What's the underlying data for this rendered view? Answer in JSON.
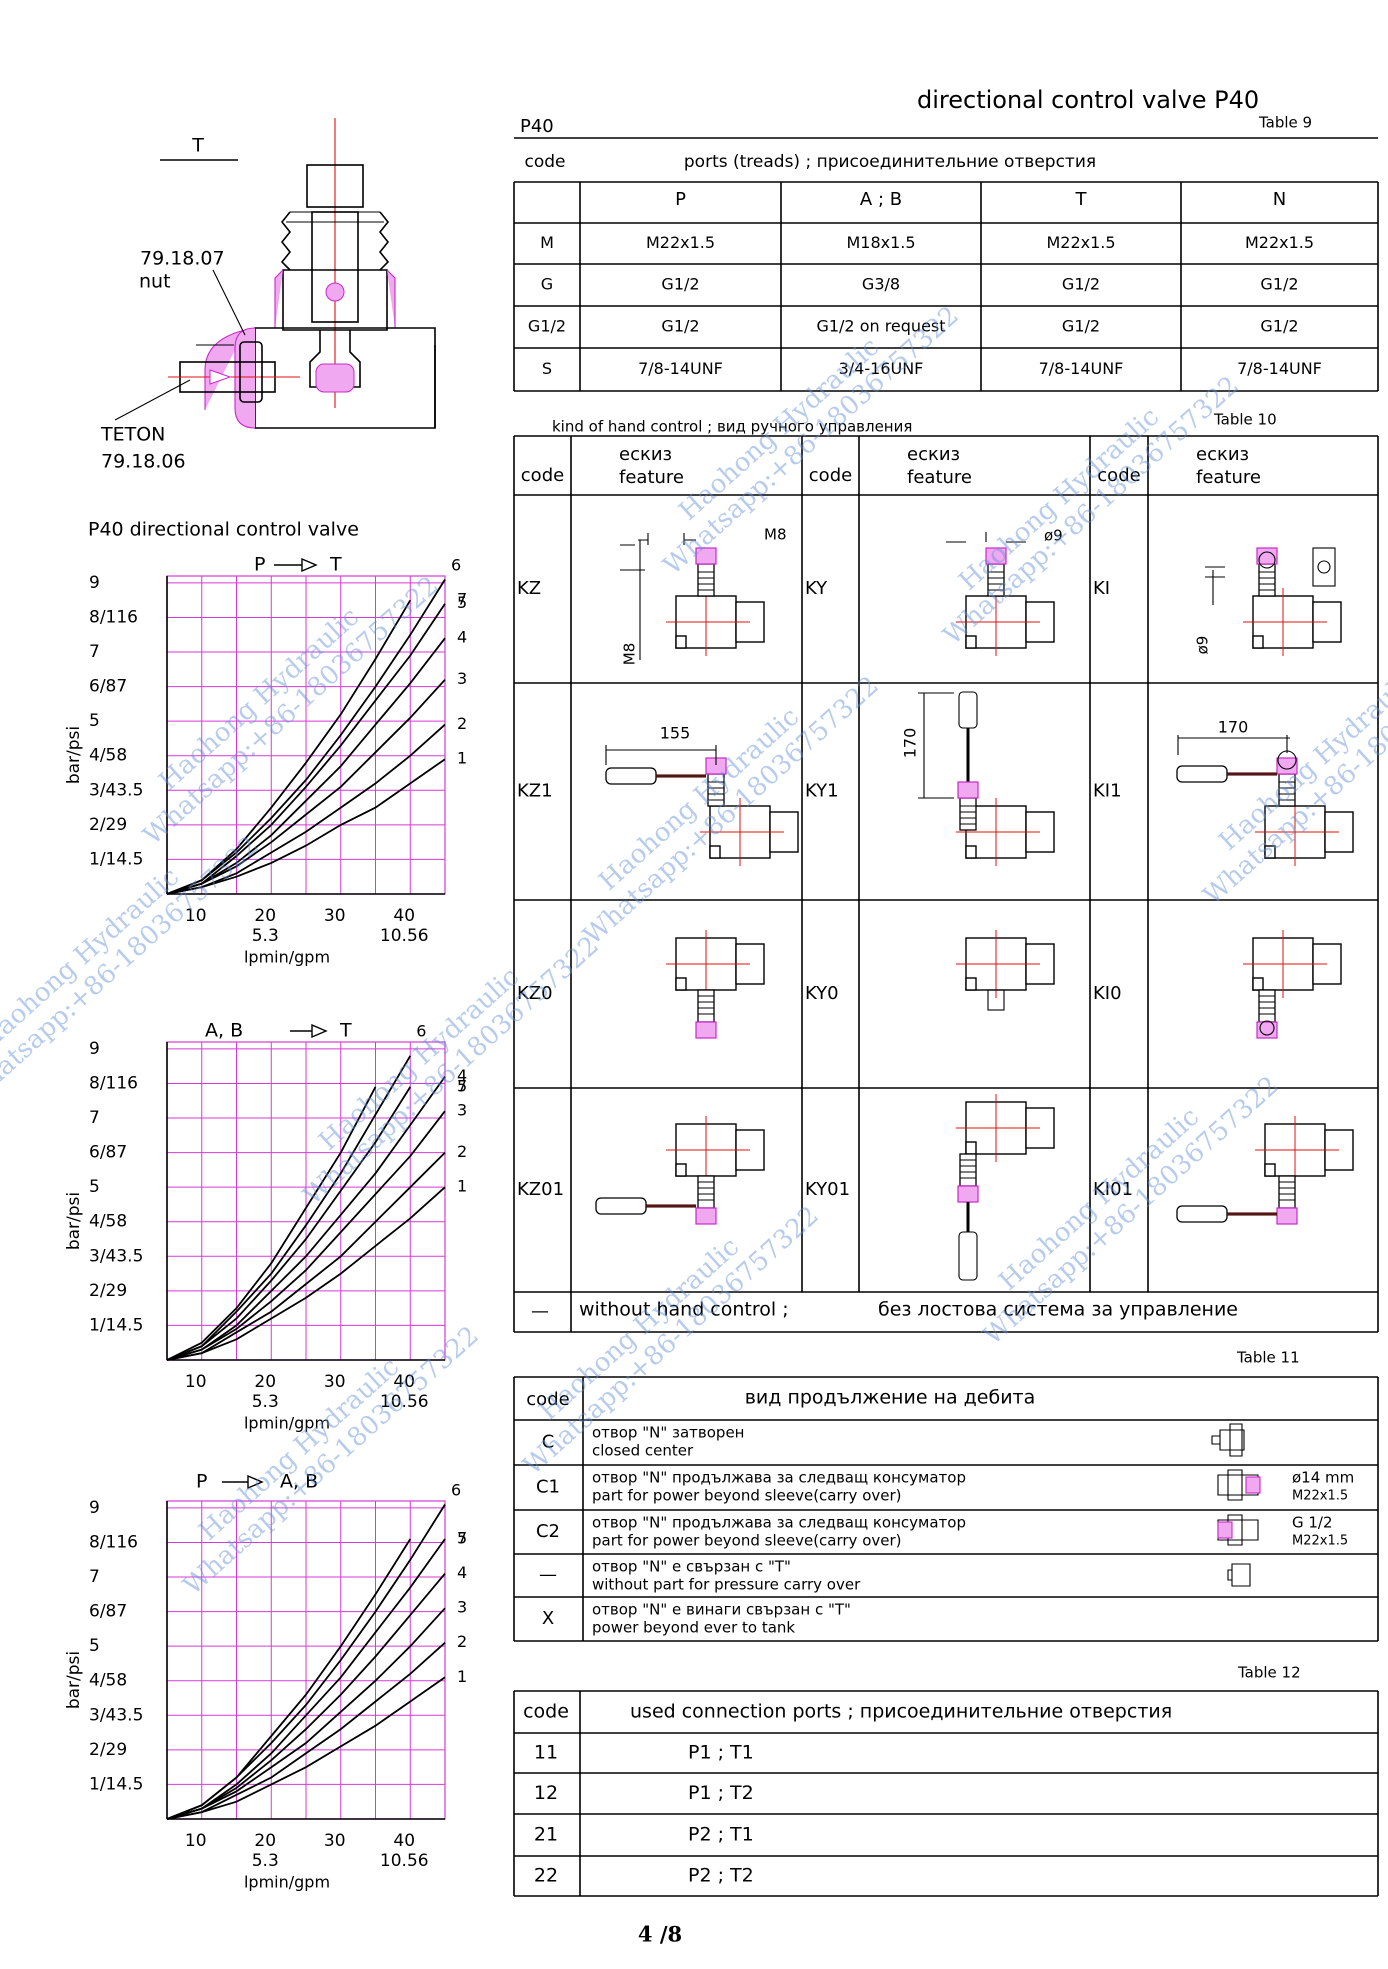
{
  "header": {
    "model": "P40",
    "title": "directional control valve P40"
  },
  "drawing": {
    "label": "T",
    "nut_code": "79.18.07",
    "nut": "nut",
    "teton": "TETON",
    "teton_code": "79.18.06"
  },
  "charts_title": "P40 directional control valve",
  "chart_data": [
    {
      "type": "line",
      "from": "P",
      "to": "T",
      "xlabel": "lpmin/gpm",
      "ylabel": "bar/psi",
      "x": [
        5,
        10,
        15,
        20,
        25,
        30,
        35,
        40,
        45
      ],
      "xlim": [
        5,
        45
      ],
      "ylim": [
        0,
        9.2
      ],
      "xticks": [
        10,
        20,
        30,
        40
      ],
      "xminor": [
        15,
        25,
        35
      ],
      "x2ticks": [
        {
          "value": 20,
          "label": "5.3"
        },
        {
          "value": 40,
          "label": "10.56"
        }
      ],
      "yticks": [
        {
          "value": 1,
          "label": "1/14.5"
        },
        {
          "value": 2,
          "label": "2/29"
        },
        {
          "value": 3,
          "label": "3/43.5"
        },
        {
          "value": 4,
          "label": "4/58"
        },
        5,
        {
          "value": 6,
          "label": "6/87"
        },
        7,
        {
          "value": 8,
          "label": "8/116"
        },
        9
      ],
      "grid": true,
      "grid_color": "#d63ad6",
      "series": [
        {
          "name": "1",
          "color": "#000000",
          "values": [
            0,
            0.2,
            0.5,
            0.9,
            1.4,
            2.0,
            2.5,
            3.2,
            3.9
          ]
        },
        {
          "name": "2",
          "color": "#000000",
          "values": [
            0,
            0.2,
            0.6,
            1.2,
            1.8,
            2.5,
            3.2,
            4.0,
            4.9
          ]
        },
        {
          "name": "3",
          "color": "#000000",
          "values": [
            0,
            0.3,
            0.8,
            1.5,
            2.3,
            3.1,
            4.1,
            5.1,
            6.2
          ]
        },
        {
          "name": "4",
          "color": "#000000",
          "values": [
            0,
            0.3,
            0.9,
            1.7,
            2.7,
            3.7,
            4.9,
            6.1,
            7.4
          ]
        },
        {
          "name": "5",
          "color": "#000000",
          "values": [
            0,
            0.3,
            1.1,
            2.0,
            3.1,
            4.3,
            5.6,
            6.9,
            8.4
          ]
        },
        {
          "name": "6",
          "color": "#000000",
          "values": [
            0,
            0.4,
            1.2,
            2.2,
            3.3,
            4.6,
            6.0,
            7.5,
            9.1
          ]
        },
        {
          "name": "7",
          "color": "#000000",
          "values": [
            0,
            0.4,
            1.3,
            2.5,
            3.8,
            5.2,
            6.8,
            8.5,
            null
          ]
        }
      ]
    },
    {
      "type": "line",
      "from": "A, B",
      "to": "T",
      "xlabel": "lpmin/gpm",
      "ylabel": "bar/psi",
      "x": [
        5,
        10,
        15,
        20,
        25,
        30,
        35,
        40,
        45
      ],
      "xlim": [
        5,
        45
      ],
      "ylim": [
        0,
        9.2
      ],
      "xticks": [
        10,
        20,
        30,
        40
      ],
      "xminor": [
        15,
        25,
        35
      ],
      "x2ticks": [
        {
          "value": 20,
          "label": "5.3"
        },
        {
          "value": 40,
          "label": "10.56"
        }
      ],
      "yticks": [
        {
          "value": 1,
          "label": "1/14.5"
        },
        {
          "value": 2,
          "label": "2/29"
        },
        {
          "value": 3,
          "label": "3/43.5"
        },
        {
          "value": 4,
          "label": "4/58"
        },
        5,
        {
          "value": 6,
          "label": "6/87"
        },
        7,
        {
          "value": 8,
          "label": "8/116"
        },
        9
      ],
      "grid": true,
      "grid_color": "#d63ad6",
      "series": [
        {
          "name": "1",
          "color": "#000000",
          "values": [
            0,
            0.2,
            0.6,
            1.2,
            1.8,
            2.5,
            3.3,
            4.1,
            5.0
          ]
        },
        {
          "name": "2",
          "color": "#000000",
          "values": [
            0,
            0.2,
            0.8,
            1.4,
            2.2,
            3.0,
            4.0,
            5.0,
            6.0
          ]
        },
        {
          "name": "3",
          "color": "#000000",
          "values": [
            0,
            0.3,
            0.9,
            1.7,
            2.6,
            3.7,
            4.8,
            5.9,
            7.2
          ]
        },
        {
          "name": "4",
          "color": "#000000",
          "values": [
            0,
            0.3,
            1.0,
            2.0,
            3.0,
            4.2,
            5.4,
            6.8,
            8.2
          ]
        },
        {
          "name": "5",
          "color": "#000000",
          "values": [
            0,
            0.4,
            1.2,
            2.3,
            3.5,
            4.9,
            6.3,
            7.9,
            null
          ]
        },
        {
          "name": "6",
          "color": "#000000",
          "values": [
            0,
            0.4,
            1.4,
            2.5,
            3.9,
            5.4,
            7.1,
            8.8,
            null
          ]
        },
        {
          "name": "7",
          "color": "#000000",
          "values": [
            0,
            0.5,
            1.5,
            2.8,
            4.4,
            6.0,
            7.9,
            null,
            null
          ]
        }
      ]
    },
    {
      "type": "line",
      "from": "P",
      "to": "A, B",
      "xlabel": "lpmin/gpm",
      "ylabel": "bar/psi",
      "x": [
        5,
        10,
        15,
        20,
        25,
        30,
        35,
        40,
        45
      ],
      "xlim": [
        5,
        45
      ],
      "ylim": [
        0,
        9.2
      ],
      "xticks": [
        10,
        20,
        30,
        40
      ],
      "xminor": [
        15,
        25,
        35
      ],
      "x2ticks": [
        {
          "value": 20,
          "label": "5.3"
        },
        {
          "value": 40,
          "label": "10.56"
        }
      ],
      "yticks": [
        {
          "value": 1,
          "label": "1/14.5"
        },
        {
          "value": 2,
          "label": "2/29"
        },
        {
          "value": 3,
          "label": "3/43.5"
        },
        {
          "value": 4,
          "label": "4/58"
        },
        5,
        {
          "value": 6,
          "label": "6/87"
        },
        7,
        {
          "value": 8,
          "label": "8/116"
        },
        9
      ],
      "grid": true,
      "grid_color": "#d63ad6",
      "series": [
        {
          "name": "1",
          "color": "#000000",
          "values": [
            0,
            0.2,
            0.5,
            1.0,
            1.5,
            2.1,
            2.7,
            3.4,
            4.1
          ]
        },
        {
          "name": "2",
          "color": "#000000",
          "values": [
            0,
            0.2,
            0.7,
            1.2,
            1.9,
            2.6,
            3.4,
            4.2,
            5.1
          ]
        },
        {
          "name": "3",
          "color": "#000000",
          "values": [
            0,
            0.3,
            0.8,
            1.5,
            2.2,
            3.1,
            4.0,
            5.0,
            6.1
          ]
        },
        {
          "name": "4",
          "color": "#000000",
          "values": [
            0,
            0.3,
            0.9,
            1.7,
            2.6,
            3.6,
            4.7,
            5.9,
            7.1
          ]
        },
        {
          "name": "5",
          "color": "#000000",
          "values": [
            0,
            0.3,
            1.0,
            1.9,
            3.0,
            4.1,
            5.4,
            6.7,
            8.1
          ]
        },
        {
          "name": "6",
          "color": "#000000",
          "values": [
            0,
            0.4,
            1.2,
            2.2,
            3.3,
            4.6,
            6.0,
            7.5,
            9.1
          ]
        },
        {
          "name": "7",
          "color": "#000000",
          "values": [
            0,
            0.4,
            1.2,
            2.4,
            3.6,
            5.0,
            6.5,
            8.1,
            null
          ]
        }
      ]
    }
  ],
  "table9": {
    "label": "Table 9",
    "code": "code",
    "title": "ports (treads) ; присоединительние отверстия",
    "columns": [
      "P",
      "A ; B",
      "T",
      "N"
    ],
    "rows": [
      [
        "M",
        "M22x1.5",
        "M18x1.5",
        "M22x1.5",
        "M22x1.5"
      ],
      [
        "G",
        "G1/2",
        "G3/8",
        "G1/2",
        "G1/2"
      ],
      [
        "G1/2",
        "G1/2",
        "G1/2 on request",
        "G1/2",
        "G1/2"
      ],
      [
        "S",
        "7/8-14UNF",
        "3/4-16UNF",
        "7/8-14UNF",
        "7/8-14UNF"
      ]
    ]
  },
  "table10": {
    "label": "Table 10",
    "caption": "kind of hand control ; вид ручного управления",
    "code": "code",
    "feature": [
      "ескиз",
      "feature"
    ],
    "rows": [
      [
        "KZ",
        "KY",
        "KI"
      ],
      [
        "KZ1",
        "KY1",
        "KI1"
      ],
      [
        "KZ0",
        "KY0",
        "KI0"
      ],
      [
        "KZ01",
        "KY01",
        "KI01"
      ]
    ],
    "dimensions": {
      "kz_width": "M8",
      "kz_height": "M8",
      "ky_width": "ø9",
      "ki_height": "ø9",
      "kz1_lever": "155",
      "ky1_lever": "170",
      "ki1_lever": "170"
    },
    "none": {
      "code": "—",
      "en": "without hand control ;",
      "bg": "без лостова система за управление"
    }
  },
  "table11": {
    "label": "Table 11",
    "code": "code",
    "title": "вид продължение на дебита",
    "rows": [
      {
        "code": "C",
        "bg": "отвор \"N\" затворен",
        "en": "closed center"
      },
      {
        "code": "C1",
        "bg": "отвор \"N\" продължава за следващ консуматор",
        "en": "part for power beyond sleeve(carry over)",
        "note": [
          "ø14 mm",
          "M22x1.5"
        ]
      },
      {
        "code": "C2",
        "bg": "отвор \"N\" продължава за следващ консуматор",
        "en": "part for power beyond sleeve(carry over)",
        "note": [
          "G 1/2",
          "M22x1.5"
        ]
      },
      {
        "code": "—",
        "bg": "отвор \"N\" е свързан с \"T\"",
        "en": "without part for pressure carry over"
      },
      {
        "code": "X",
        "bg": "отвор \"N\" е винаги свързан с \"T\"",
        "en": "power beyond ever to tank"
      }
    ]
  },
  "table12": {
    "label": "Table 12",
    "code": "code",
    "title": "used connection ports ; присоединительние отверстия",
    "rows": [
      [
        "11",
        "P1 ; T1"
      ],
      [
        "12",
        "P1 ; T2"
      ],
      [
        "21",
        "P2 ; T1"
      ],
      [
        "22",
        "P2 ; T2"
      ]
    ]
  },
  "page": "4 /8",
  "watermark": [
    "Haohong Hydraulic",
    "Whatsapp:+86-18036757322"
  ]
}
